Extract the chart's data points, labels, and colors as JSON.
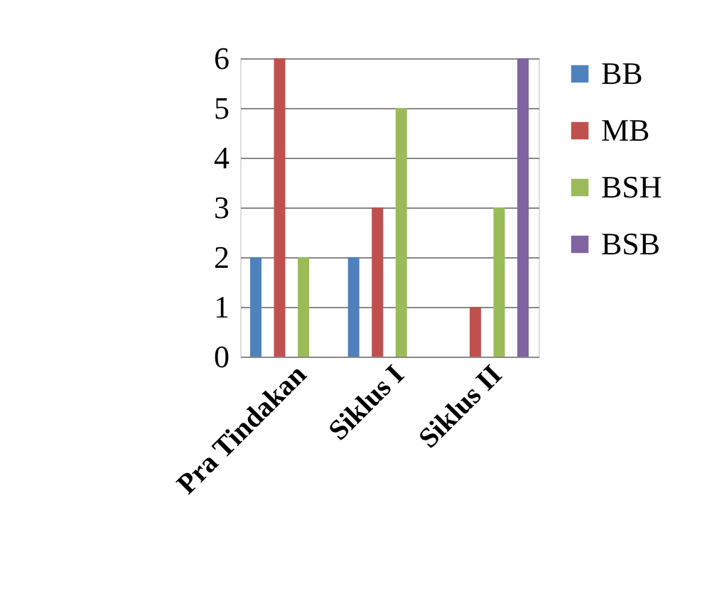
{
  "chart_data": {
    "type": "bar",
    "categories": [
      "Pra Tindakan",
      "Siklus I",
      "Siklus II"
    ],
    "series": [
      {
        "name": "BB",
        "color": "#4f81bd",
        "values": [
          2,
          2,
          0
        ]
      },
      {
        "name": "MB",
        "color": "#c0504d",
        "values": [
          6,
          3,
          1
        ]
      },
      {
        "name": "BSH",
        "color": "#9bbb59",
        "values": [
          2,
          5,
          3
        ]
      },
      {
        "name": "BSB",
        "color": "#8064a2",
        "values": [
          0,
          0,
          6
        ]
      }
    ],
    "ylim": [
      0,
      6
    ],
    "yticks": [
      0,
      1,
      2,
      3,
      4,
      5,
      6
    ],
    "grid": "y",
    "legend": "right"
  }
}
